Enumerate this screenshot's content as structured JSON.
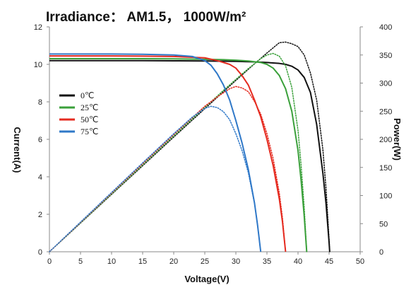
{
  "chart_data": {
    "type": "line",
    "title": "Irradiance： AM1.5， 1000W/m²",
    "xlabel": "Voltage(V)",
    "ylabel_left": "Current(A)",
    "ylabel_right": "Power(W)",
    "xlim": [
      0,
      50
    ],
    "ylim_left": [
      0,
      12
    ],
    "ylim_right": [
      0,
      400
    ],
    "xticks": [
      0,
      5,
      10,
      15,
      20,
      25,
      30,
      35,
      40,
      45,
      50
    ],
    "yticks_left": [
      0,
      2,
      4,
      6,
      8,
      10,
      12
    ],
    "yticks_right": [
      0,
      50,
      100,
      150,
      200,
      250,
      300,
      350,
      400
    ],
    "grid": false,
    "legend_position": "left",
    "series": [
      {
        "name": "0℃",
        "color": "#111111",
        "current": {
          "x": [
            0,
            5,
            10,
            15,
            20,
            25,
            30,
            33,
            35,
            37,
            38,
            39,
            40,
            41,
            42,
            43,
            44,
            44.5,
            45,
            45.1
          ],
          "y": [
            10.2,
            10.2,
            10.2,
            10.2,
            10.19,
            10.18,
            10.16,
            10.13,
            10.1,
            10.05,
            10.0,
            9.9,
            9.7,
            9.3,
            8.5,
            6.8,
            4.2,
            2.6,
            0.5,
            0
          ]
        },
        "power": {
          "x": [
            0,
            5,
            10,
            15,
            20,
            25,
            30,
            33,
            35,
            37,
            38,
            39,
            40,
            41,
            42,
            43,
            44,
            44.5,
            45,
            45.1
          ],
          "y": [
            0,
            51,
            102,
            153,
            204,
            254.5,
            304.8,
            334.3,
            353.5,
            371.9,
            373,
            370,
            365,
            350,
            318,
            270,
            182,
            114,
            22,
            0
          ]
        }
      },
      {
        "name": "25℃",
        "color": "#3aa03a",
        "current": {
          "x": [
            0,
            5,
            10,
            15,
            20,
            25,
            28,
            30,
            32,
            34,
            35,
            36,
            37,
            38,
            39,
            40,
            40.5,
            41,
            41.4
          ],
          "y": [
            10.3,
            10.3,
            10.3,
            10.3,
            10.29,
            10.27,
            10.25,
            10.22,
            10.18,
            10.1,
            10.0,
            9.8,
            9.4,
            8.7,
            7.5,
            5.4,
            3.8,
            1.9,
            0
          ]
        },
        "power": {
          "x": [
            0,
            5,
            10,
            15,
            20,
            25,
            28,
            30,
            32,
            34,
            35,
            36,
            37,
            38,
            39,
            40,
            40.5,
            41,
            41.4
          ],
          "y": [
            0,
            51.5,
            103,
            154.5,
            205.8,
            256.8,
            287,
            306.6,
            325.8,
            343.4,
            350,
            352.8,
            347.8,
            330.6,
            292.5,
            216,
            153.9,
            77.9,
            0
          ]
        }
      },
      {
        "name": "50℃",
        "color": "#e52b20",
        "current": {
          "x": [
            0,
            5,
            10,
            15,
            20,
            25,
            27,
            29,
            30,
            31,
            32,
            33,
            34,
            35,
            36,
            37,
            37.5,
            38
          ],
          "y": [
            10.45,
            10.45,
            10.45,
            10.44,
            10.42,
            10.35,
            10.2,
            10.0,
            9.8,
            9.4,
            8.9,
            8.1,
            7.2,
            6.0,
            4.6,
            2.8,
            1.6,
            0
          ]
        },
        "power": {
          "x": [
            0,
            5,
            10,
            15,
            20,
            25,
            27,
            29,
            30,
            31,
            32,
            33,
            34,
            35,
            36,
            37,
            37.5,
            38
          ],
          "y": [
            0,
            52.3,
            104.5,
            156.6,
            208.4,
            258.8,
            275.4,
            290,
            294,
            291.4,
            284.8,
            267.3,
            244.8,
            210,
            165.6,
            103.6,
            60,
            0
          ]
        }
      },
      {
        "name": "75℃",
        "color": "#2f78c8",
        "current": {
          "x": [
            0,
            5,
            10,
            15,
            20,
            23,
            25,
            26,
            27,
            28,
            29,
            30,
            31,
            32,
            33,
            33.5,
            34
          ],
          "y": [
            10.55,
            10.55,
            10.55,
            10.54,
            10.5,
            10.42,
            10.2,
            9.95,
            9.5,
            8.9,
            8.1,
            7.0,
            5.8,
            4.4,
            2.6,
            1.4,
            0
          ]
        },
        "power": {
          "x": [
            0,
            5,
            10,
            15,
            20,
            23,
            25,
            26,
            27,
            28,
            29,
            30,
            31,
            32,
            33,
            33.5,
            34
          ],
          "y": [
            0,
            52.8,
            105.5,
            158.1,
            210,
            239.7,
            255,
            258.7,
            256.5,
            249.2,
            234.9,
            210,
            179.8,
            140.8,
            85.8,
            46.9,
            0
          ]
        }
      }
    ]
  }
}
